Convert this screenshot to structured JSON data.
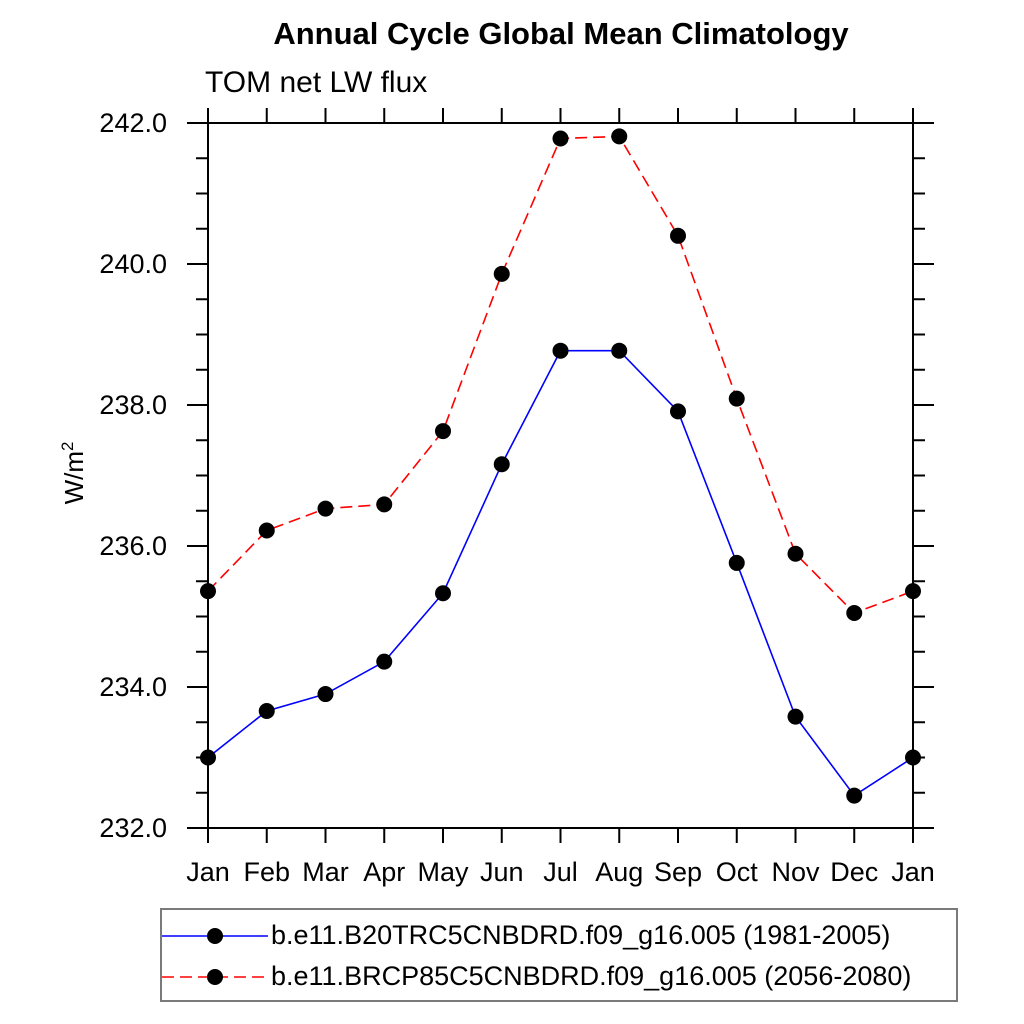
{
  "chart_data": {
    "type": "line",
    "title": "Annual Cycle Global Mean Climatology",
    "subtitle": "TOM net LW flux",
    "ylabel_base": "W/m",
    "ylabel_sup": "2",
    "categories": [
      "Jan",
      "Feb",
      "Mar",
      "Apr",
      "May",
      "Jun",
      "Jul",
      "Aug",
      "Sep",
      "Oct",
      "Nov",
      "Dec",
      "Jan"
    ],
    "ylim": [
      232.0,
      242.0
    ],
    "ytick_values": [
      232.0,
      234.0,
      236.0,
      238.0,
      240.0,
      242.0
    ],
    "ytick_labels": [
      "232.0",
      "234.0",
      "236.0",
      "238.0",
      "240.0",
      "242.0"
    ],
    "ytick_minor_step": 0.5,
    "grid": false,
    "legend_position": "bottom",
    "axis_color": "#000000",
    "marker_color": "#000000",
    "series": [
      {
        "name": "b.e11.B20TRC5CNBDRD.f09_g16.005 (1981-2005)",
        "color": "#0000ff",
        "line_style": "solid",
        "marker": "circle",
        "values": [
          233.0,
          233.66,
          233.9,
          234.36,
          235.33,
          237.16,
          238.77,
          238.77,
          237.91,
          235.76,
          233.58,
          232.46,
          233.0
        ]
      },
      {
        "name": "b.e11.BRCP85C5CNBDRD.f09_g16.005 (2056-2080)",
        "color": "#ff0000",
        "line_style": "dashed",
        "marker": "circle",
        "values": [
          235.36,
          236.22,
          236.53,
          236.59,
          237.63,
          239.86,
          241.78,
          241.81,
          240.4,
          238.09,
          235.89,
          235.05,
          235.36
        ]
      }
    ]
  }
}
